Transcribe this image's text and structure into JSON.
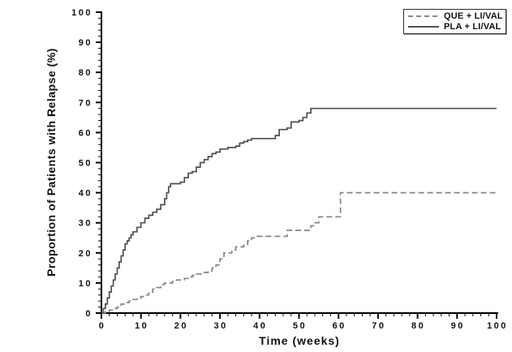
{
  "figure": {
    "background": "#ffffff"
  },
  "y_axis": {
    "title": "Proportion of Patients with Relapse (%)",
    "min": 0,
    "max": 100,
    "major_step": 10,
    "minor_step": 2,
    "major_ticks": [
      0,
      10,
      20,
      30,
      40,
      50,
      60,
      70,
      80,
      90,
      100
    ],
    "tick_labels": [
      "0",
      "10",
      "20",
      "30",
      "40",
      "50",
      "60",
      "70",
      "80",
      "90",
      "100"
    ]
  },
  "x_axis": {
    "title": "Time (weeks)",
    "min": 0,
    "max": 100,
    "major_step": 10,
    "minor_step": 2,
    "major_ticks": [
      0,
      10,
      20,
      30,
      40,
      50,
      60,
      70,
      80,
      90,
      100
    ],
    "tick_labels": [
      "0",
      "10",
      "20",
      "30",
      "40",
      "50",
      "60",
      "70",
      "80",
      "90",
      "100"
    ]
  },
  "legend": {
    "position": "top-right",
    "entries": [
      {
        "label": "QUE + LI/VAL",
        "line": "dashed"
      },
      {
        "label": "PLA + LI/VAL",
        "line": "solid"
      }
    ]
  },
  "colors": {
    "axis": "#000000",
    "text": "#111111",
    "que_line": "#858585",
    "pla_line": "#4f4f4f"
  },
  "chart_data": {
    "type": "line",
    "step": true,
    "title": "",
    "xlabel": "Time (weeks)",
    "ylabel": "Proportion of Patients with Relapse (%)",
    "xlim": [
      0,
      100
    ],
    "ylim": [
      0,
      100
    ],
    "grid": false,
    "legend_position": "top-right",
    "series": [
      {
        "name": "QUE + LI/VAL",
        "line": "dashed",
        "color": "#858585",
        "points": [
          [
            0,
            0
          ],
          [
            1,
            0.5
          ],
          [
            2,
            1
          ],
          [
            3,
            1.5
          ],
          [
            4,
            2
          ],
          [
            5,
            3
          ],
          [
            6,
            3.5
          ],
          [
            7,
            4
          ],
          [
            8,
            4.5
          ],
          [
            9,
            5
          ],
          [
            10,
            5.5
          ],
          [
            11,
            6
          ],
          [
            12,
            7
          ],
          [
            13,
            8
          ],
          [
            14,
            8.5
          ],
          [
            15,
            9.5
          ],
          [
            16,
            10
          ],
          [
            18,
            10.5
          ],
          [
            19,
            11
          ],
          [
            21,
            11.5
          ],
          [
            22,
            12
          ],
          [
            23,
            12.5
          ],
          [
            24,
            13
          ],
          [
            26,
            13.5
          ],
          [
            27,
            14
          ],
          [
            28,
            15
          ],
          [
            29,
            16
          ],
          [
            30,
            18
          ],
          [
            31,
            20
          ],
          [
            33,
            21
          ],
          [
            34,
            22
          ],
          [
            36,
            22.5
          ],
          [
            37,
            24
          ],
          [
            38,
            25
          ],
          [
            39,
            25.5
          ],
          [
            46,
            25.5
          ],
          [
            47,
            27.5
          ],
          [
            52,
            27.5
          ],
          [
            53,
            29
          ],
          [
            54,
            30
          ],
          [
            55,
            32
          ],
          [
            60,
            32
          ],
          [
            60.5,
            40
          ],
          [
            100,
            40
          ]
        ]
      },
      {
        "name": "PLA + LI/VAL",
        "line": "solid",
        "color": "#4f4f4f",
        "points": [
          [
            0,
            0
          ],
          [
            0.5,
            1.5
          ],
          [
            1,
            3
          ],
          [
            1.5,
            5
          ],
          [
            2,
            7
          ],
          [
            2.5,
            9
          ],
          [
            3,
            11
          ],
          [
            3.5,
            13
          ],
          [
            4,
            15
          ],
          [
            4.5,
            17
          ],
          [
            5,
            19
          ],
          [
            5.5,
            21
          ],
          [
            6,
            23
          ],
          [
            6.5,
            24
          ],
          [
            7,
            25
          ],
          [
            7.5,
            26
          ],
          [
            8,
            27
          ],
          [
            9,
            28.5
          ],
          [
            10,
            30
          ],
          [
            11,
            31.5
          ],
          [
            12,
            32.5
          ],
          [
            13,
            33.5
          ],
          [
            14,
            34.5
          ],
          [
            15,
            36
          ],
          [
            16,
            38
          ],
          [
            16.5,
            40
          ],
          [
            17,
            42
          ],
          [
            17.5,
            43
          ],
          [
            20,
            43.5
          ],
          [
            21,
            45
          ],
          [
            22,
            46.5
          ],
          [
            23,
            47
          ],
          [
            24,
            48.5
          ],
          [
            25,
            50
          ],
          [
            26,
            51
          ],
          [
            27,
            52
          ],
          [
            28,
            53
          ],
          [
            29,
            53.5
          ],
          [
            30,
            54.5
          ],
          [
            32,
            55
          ],
          [
            34,
            55.5
          ],
          [
            35,
            56.5
          ],
          [
            36,
            57
          ],
          [
            37,
            57.5
          ],
          [
            38,
            58
          ],
          [
            42,
            58
          ],
          [
            44,
            59
          ],
          [
            45,
            61
          ],
          [
            47,
            61.5
          ],
          [
            48,
            63.5
          ],
          [
            50,
            64
          ],
          [
            51,
            65
          ],
          [
            52,
            66.5
          ],
          [
            53,
            68
          ],
          [
            100,
            68
          ]
        ]
      }
    ]
  }
}
